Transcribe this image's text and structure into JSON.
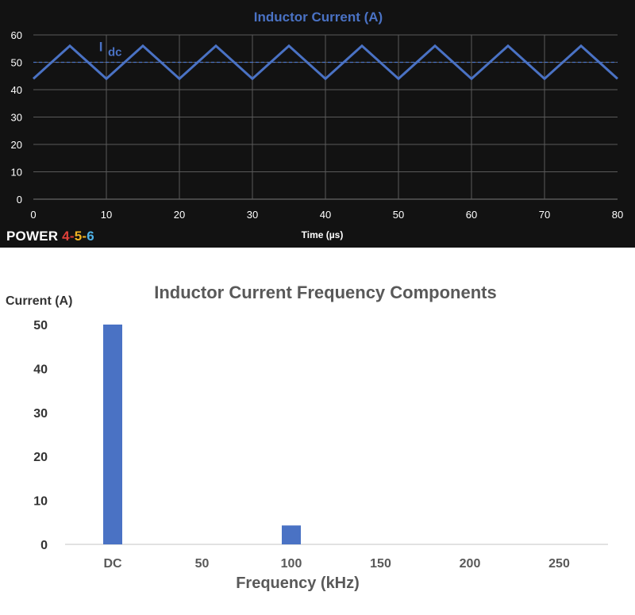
{
  "brand": {
    "word": "POWER",
    "n1": "4",
    "n2": "5",
    "n3": "6",
    "sep": "-"
  },
  "colors": {
    "accent": "#4a72c4",
    "panel_bg": "#121212",
    "grid_dark": "#5a5a5a",
    "bar": "#4a72c4"
  },
  "chart_data": [
    {
      "type": "line",
      "title": "Inductor Current (A)",
      "xlabel": "Time (µs)",
      "ylabel": "",
      "xlim": [
        0,
        80
      ],
      "ylim": [
        0,
        60
      ],
      "x_ticks": [
        0,
        10,
        20,
        30,
        40,
        50,
        60,
        70,
        80
      ],
      "y_ticks": [
        0,
        10,
        20,
        30,
        40,
        50,
        60
      ],
      "grid": true,
      "series": [
        {
          "name": "",
          "x": [
            0,
            5,
            10,
            15,
            20,
            25,
            30,
            35,
            40,
            45,
            50,
            55,
            60,
            65,
            70,
            75,
            80
          ],
          "y": [
            44,
            56,
            44,
            56,
            44,
            56,
            44,
            56,
            44,
            56,
            44,
            56,
            44,
            56,
            44,
            56,
            44
          ]
        }
      ],
      "reference_line": {
        "y": 50,
        "style": "dashed"
      },
      "annotation": {
        "text": "I",
        "subscript": "dc",
        "x": 9,
        "y": 54
      }
    },
    {
      "type": "bar",
      "title": "Inductor Current Frequency Components",
      "xlabel": "Frequency (kHz)",
      "ylabel": "Current (A)",
      "categories": [
        "DC",
        "50",
        "100",
        "150",
        "200",
        "250"
      ],
      "values": [
        50,
        0,
        4.3,
        0,
        0,
        0
      ],
      "ylim": [
        0,
        50
      ],
      "y_ticks": [
        0,
        10,
        20,
        30,
        40,
        50
      ],
      "grid": false
    }
  ]
}
